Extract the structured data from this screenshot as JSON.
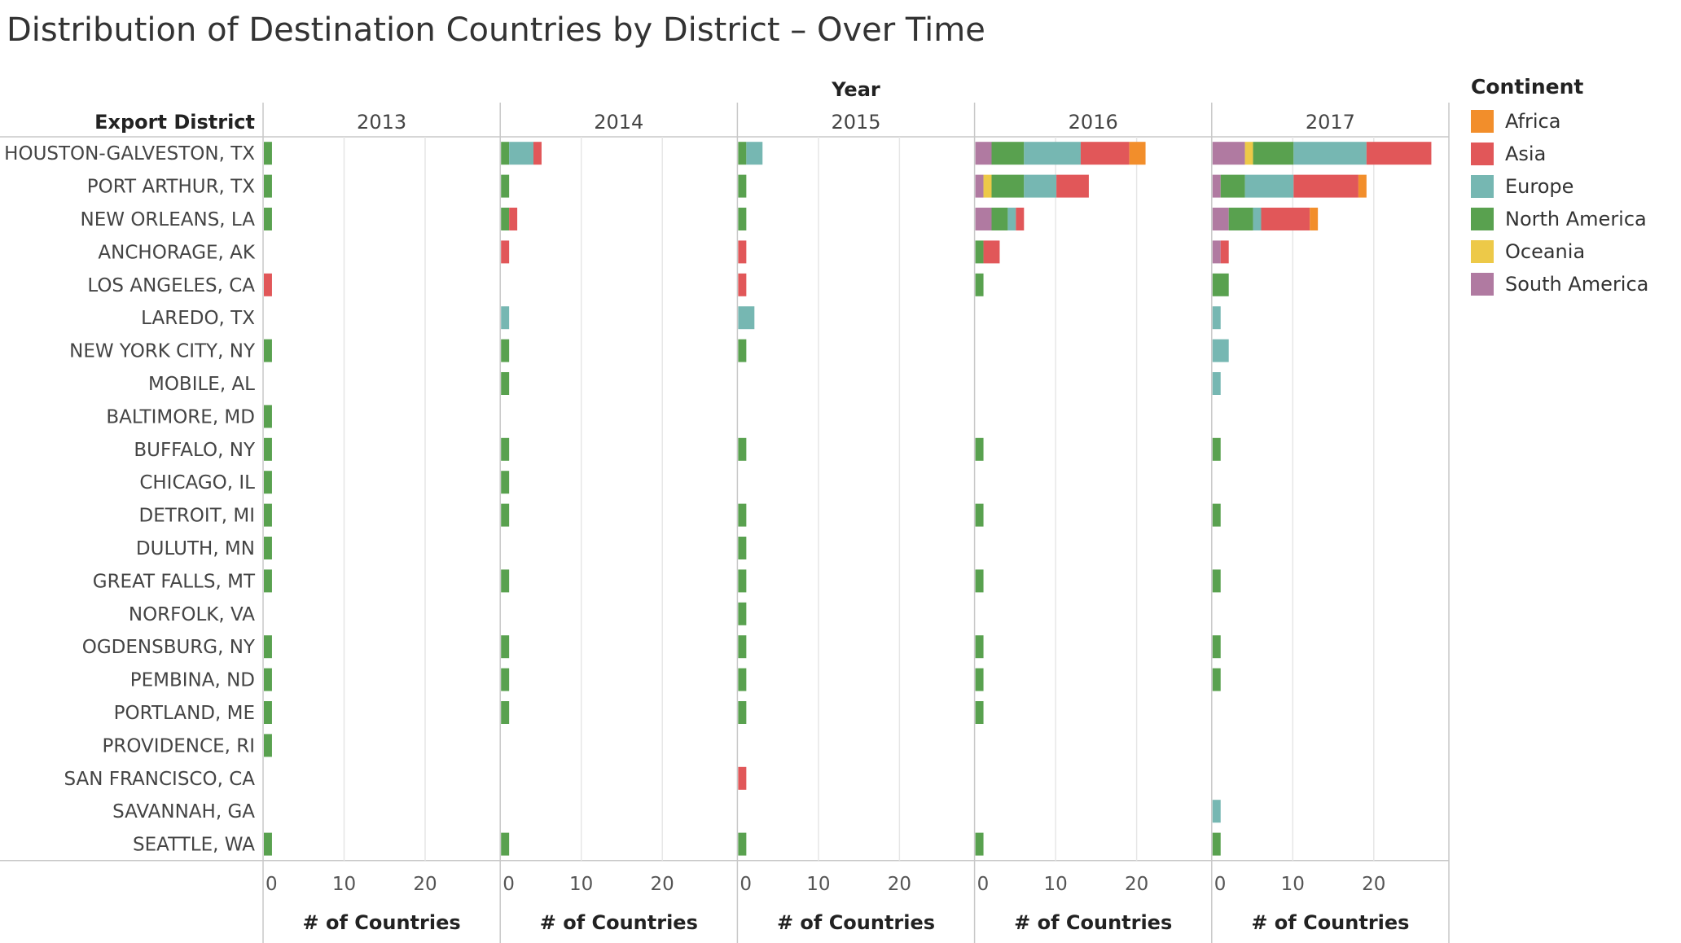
{
  "title": "Distribution of Destination Countries by District – Over Time",
  "column_header": "Year",
  "row_header": "Export District",
  "legend": {
    "title": "Continent",
    "items": [
      {
        "label": "Africa",
        "color": "#f28e2b"
      },
      {
        "label": "Asia",
        "color": "#e15759"
      },
      {
        "label": "Europe",
        "color": "#76b7b2"
      },
      {
        "label": "North America",
        "color": "#59a14f"
      },
      {
        "label": "Oceania",
        "color": "#edc948"
      },
      {
        "label": "South America",
        "color": "#b07aa1"
      }
    ]
  },
  "chart_data": {
    "type": "bar",
    "orientation": "horizontal",
    "stacked": true,
    "x_axis_label": "# of Countries",
    "x_ticks": [
      "0",
      "10",
      "20"
    ],
    "xlim": [
      0,
      29
    ],
    "grid": true,
    "legend_position": "right",
    "stack_order": [
      "South America",
      "Oceania",
      "North America",
      "Europe",
      "Asia",
      "Africa"
    ],
    "years": [
      "2013",
      "2014",
      "2015",
      "2016",
      "2017"
    ],
    "districts": [
      "HOUSTON-GALVESTON, TX",
      "PORT ARTHUR, TX",
      "NEW ORLEANS, LA",
      "ANCHORAGE, AK",
      "LOS ANGELES, CA",
      "LAREDO, TX",
      "NEW YORK CITY, NY",
      "MOBILE, AL",
      "BALTIMORE, MD",
      "BUFFALO, NY",
      "CHICAGO, IL",
      "DETROIT, MI",
      "DULUTH, MN",
      "GREAT FALLS, MT",
      "NORFOLK, VA",
      "OGDENSBURG, NY",
      "PEMBINA, ND",
      "PORTLAND, ME",
      "PROVIDENCE, RI",
      "SAN FRANCISCO, CA",
      "SAVANNAH, GA",
      "SEATTLE, WA"
    ],
    "values": {
      "2013": {
        "HOUSTON-GALVESTON, TX": {
          "North America": 1
        },
        "PORT ARTHUR, TX": {
          "North America": 1
        },
        "NEW ORLEANS, LA": {
          "North America": 1
        },
        "LOS ANGELES, CA": {
          "Asia": 1
        },
        "NEW YORK CITY, NY": {
          "North America": 1
        },
        "BALTIMORE, MD": {
          "North America": 1
        },
        "BUFFALO, NY": {
          "North America": 1
        },
        "CHICAGO, IL": {
          "North America": 1
        },
        "DETROIT, MI": {
          "North America": 1
        },
        "DULUTH, MN": {
          "North America": 1
        },
        "GREAT FALLS, MT": {
          "North America": 1
        },
        "OGDENSBURG, NY": {
          "North America": 1
        },
        "PEMBINA, ND": {
          "North America": 1
        },
        "PORTLAND, ME": {
          "North America": 1
        },
        "PROVIDENCE, RI": {
          "North America": 1
        },
        "SEATTLE, WA": {
          "North America": 1
        }
      },
      "2014": {
        "HOUSTON-GALVESTON, TX": {
          "North America": 1,
          "Europe": 3,
          "Asia": 1
        },
        "PORT ARTHUR, TX": {
          "North America": 1
        },
        "NEW ORLEANS, LA": {
          "North America": 1,
          "Asia": 1
        },
        "ANCHORAGE, AK": {
          "Asia": 1
        },
        "LAREDO, TX": {
          "Europe": 1
        },
        "NEW YORK CITY, NY": {
          "North America": 1
        },
        "MOBILE, AL": {
          "North America": 1
        },
        "BUFFALO, NY": {
          "North America": 1
        },
        "CHICAGO, IL": {
          "North America": 1
        },
        "DETROIT, MI": {
          "North America": 1
        },
        "GREAT FALLS, MT": {
          "North America": 1
        },
        "OGDENSBURG, NY": {
          "North America": 1
        },
        "PEMBINA, ND": {
          "North America": 1
        },
        "PORTLAND, ME": {
          "North America": 1
        },
        "SEATTLE, WA": {
          "North America": 1
        }
      },
      "2015": {
        "HOUSTON-GALVESTON, TX": {
          "North America": 1,
          "Europe": 2
        },
        "PORT ARTHUR, TX": {
          "North America": 1
        },
        "NEW ORLEANS, LA": {
          "North America": 1
        },
        "ANCHORAGE, AK": {
          "Asia": 1
        },
        "LOS ANGELES, CA": {
          "Asia": 1
        },
        "LAREDO, TX": {
          "Europe": 2
        },
        "NEW YORK CITY, NY": {
          "North America": 1
        },
        "BUFFALO, NY": {
          "North America": 1
        },
        "DETROIT, MI": {
          "North America": 1
        },
        "DULUTH, MN": {
          "North America": 1
        },
        "GREAT FALLS, MT": {
          "North America": 1
        },
        "NORFOLK, VA": {
          "North America": 1
        },
        "OGDENSBURG, NY": {
          "North America": 1
        },
        "PEMBINA, ND": {
          "North America": 1
        },
        "PORTLAND, ME": {
          "North America": 1
        },
        "SAN FRANCISCO, CA": {
          "Asia": 1
        },
        "SEATTLE, WA": {
          "North America": 1
        }
      },
      "2016": {
        "HOUSTON-GALVESTON, TX": {
          "South America": 2,
          "North America": 4,
          "Europe": 7,
          "Asia": 6,
          "Africa": 2
        },
        "PORT ARTHUR, TX": {
          "South America": 1,
          "Oceania": 1,
          "North America": 4,
          "Europe": 4,
          "Asia": 4
        },
        "NEW ORLEANS, LA": {
          "South America": 2,
          "North America": 2,
          "Europe": 1,
          "Asia": 1
        },
        "ANCHORAGE, AK": {
          "North America": 1,
          "Asia": 2
        },
        "LOS ANGELES, CA": {
          "North America": 1
        },
        "BUFFALO, NY": {
          "North America": 1
        },
        "DETROIT, MI": {
          "North America": 1
        },
        "GREAT FALLS, MT": {
          "North America": 1
        },
        "OGDENSBURG, NY": {
          "North America": 1
        },
        "PEMBINA, ND": {
          "North America": 1
        },
        "PORTLAND, ME": {
          "North America": 1
        },
        "SEATTLE, WA": {
          "North America": 1
        }
      },
      "2017": {
        "HOUSTON-GALVESTON, TX": {
          "South America": 4,
          "Oceania": 1,
          "North America": 5,
          "Europe": 9,
          "Asia": 8
        },
        "PORT ARTHUR, TX": {
          "South America": 1,
          "North America": 3,
          "Europe": 6,
          "Asia": 8,
          "Africa": 1
        },
        "NEW ORLEANS, LA": {
          "South America": 2,
          "North America": 3,
          "Europe": 1,
          "Asia": 6,
          "Africa": 1
        },
        "ANCHORAGE, AK": {
          "South America": 1,
          "Asia": 1
        },
        "LOS ANGELES, CA": {
          "North America": 2
        },
        "LAREDO, TX": {
          "Europe": 1
        },
        "NEW YORK CITY, NY": {
          "Europe": 2
        },
        "MOBILE, AL": {
          "Europe": 1
        },
        "BUFFALO, NY": {
          "North America": 1
        },
        "DETROIT, MI": {
          "North America": 1
        },
        "GREAT FALLS, MT": {
          "North America": 1
        },
        "OGDENSBURG, NY": {
          "North America": 1
        },
        "PEMBINA, ND": {
          "North America": 1
        },
        "SAVANNAH, GA": {
          "Europe": 1
        },
        "SEATTLE, WA": {
          "North America": 1
        }
      }
    }
  }
}
